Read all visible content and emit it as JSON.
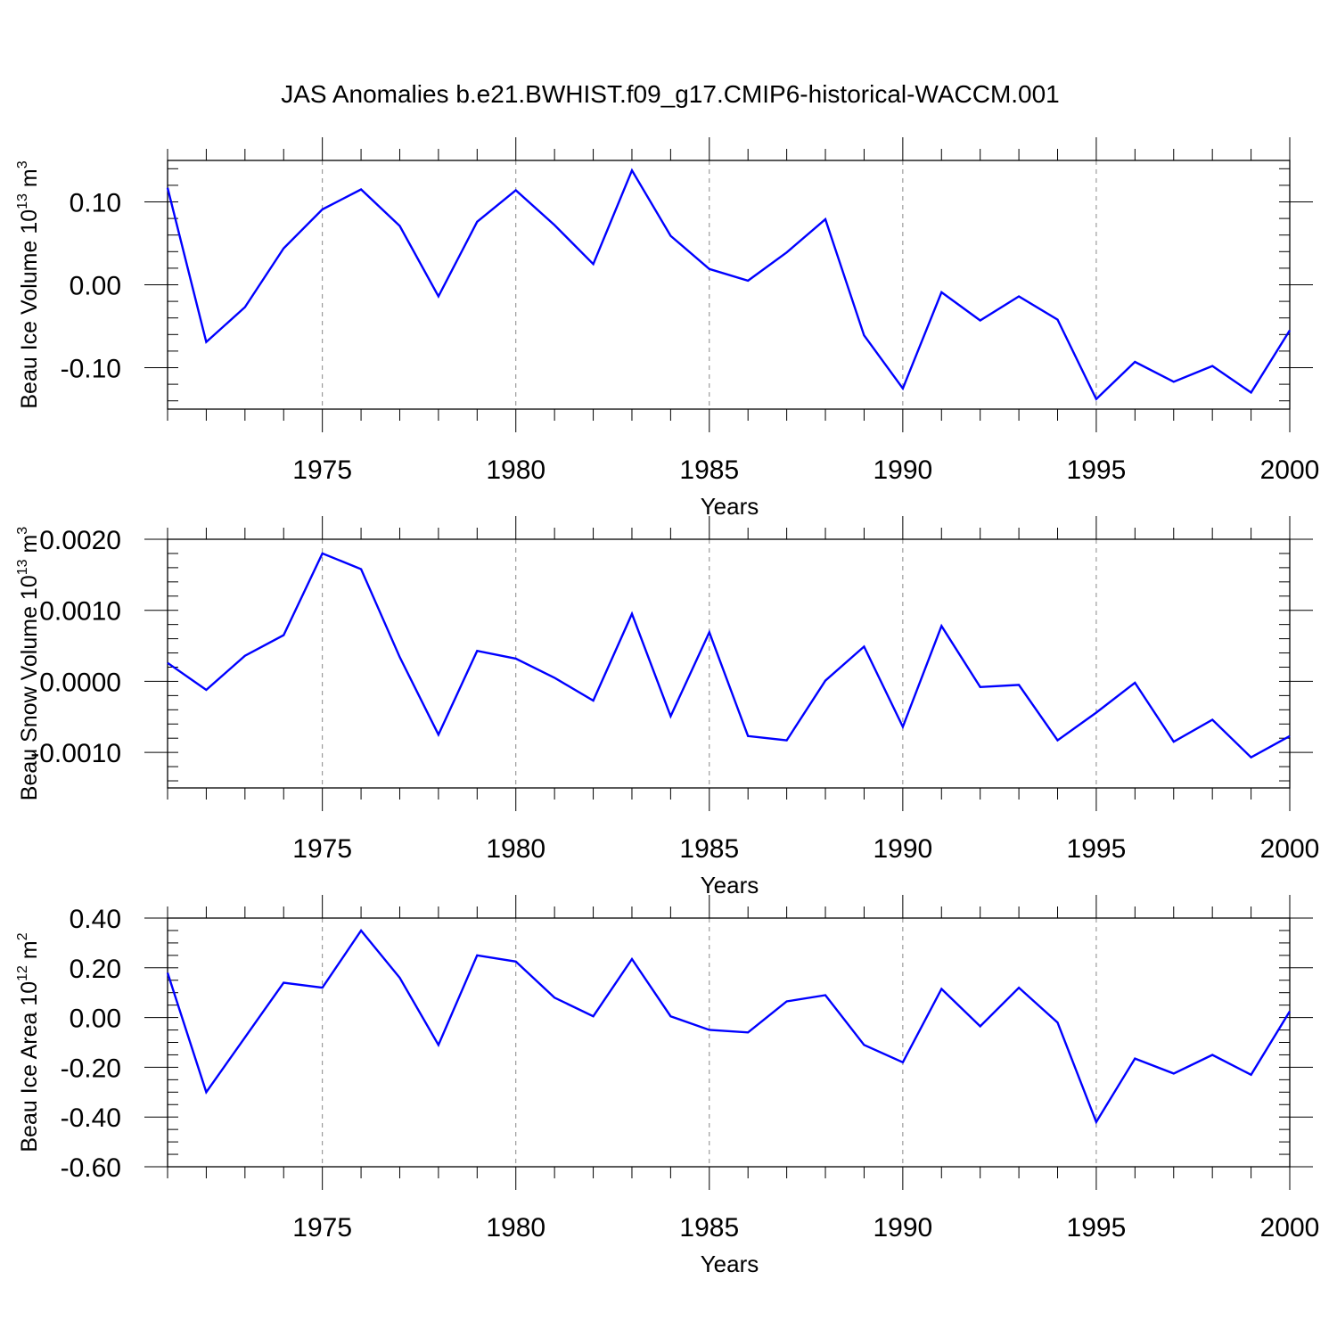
{
  "figure_title": "JAS Anomalies b.e21.BWHIST.f09_g17.CMIP6-historical-WACCM.001",
  "colors": {
    "series": "#0000ff",
    "axis": "#000000",
    "grid": "#888888"
  },
  "chart_data": [
    {
      "type": "line",
      "ylabel_main": "Beau Ice Volume 10",
      "ylabel_sup": "13",
      "ylabel_unit": "m",
      "ylabel_unit_sup": "3",
      "xlabel": "Years",
      "xlim": [
        1971,
        2000
      ],
      "ylim": [
        -0.15,
        0.15
      ],
      "yticks": [
        -0.1,
        0.0,
        0.1
      ],
      "ytick_labels": [
        "-0.10",
        "0.00",
        "0.10"
      ],
      "yminor_step": 0.02,
      "xticks": [
        1975,
        1980,
        1985,
        1990,
        1995,
        2000
      ],
      "xtick_labels": [
        "1975",
        "1980",
        "1985",
        "1990",
        "1995",
        "2000"
      ],
      "x": [
        1971,
        1972,
        1973,
        1974,
        1975,
        1976,
        1977,
        1978,
        1979,
        1980,
        1981,
        1982,
        1983,
        1984,
        1985,
        1986,
        1987,
        1988,
        1989,
        1990,
        1991,
        1992,
        1993,
        1994,
        1995,
        1996,
        1997,
        1998,
        1999,
        2000
      ],
      "series": [
        {
          "name": "Beau Ice Volume",
          "values": [
            0.117,
            -0.069,
            -0.027,
            0.044,
            0.091,
            0.115,
            0.071,
            -0.014,
            0.076,
            0.114,
            0.072,
            0.025,
            0.138,
            0.059,
            0.019,
            0.005,
            0.039,
            0.079,
            -0.061,
            -0.125,
            -0.009,
            -0.043,
            -0.014,
            -0.042,
            -0.138,
            -0.093,
            -0.117,
            -0.098,
            -0.13,
            -0.055
          ]
        }
      ]
    },
    {
      "type": "line",
      "ylabel_main": "Beau Snow Volume 10",
      "ylabel_sup": "13",
      "ylabel_unit": "m",
      "ylabel_unit_sup": "3",
      "xlabel": "Years",
      "xlim": [
        1971,
        2000
      ],
      "ylim": [
        -0.0015,
        0.002
      ],
      "yticks": [
        -0.001,
        0.0,
        0.001,
        0.002
      ],
      "ytick_labels": [
        "-0.0010",
        "0.0000",
        "0.0010",
        "0.0020"
      ],
      "yminor_step": 0.0002,
      "xticks": [
        1975,
        1980,
        1985,
        1990,
        1995,
        2000
      ],
      "xtick_labels": [
        "1975",
        "1980",
        "1985",
        "1990",
        "1995",
        "2000"
      ],
      "x": [
        1971,
        1972,
        1973,
        1974,
        1975,
        1976,
        1977,
        1978,
        1979,
        1980,
        1981,
        1982,
        1983,
        1984,
        1985,
        1986,
        1987,
        1988,
        1989,
        1990,
        1991,
        1992,
        1993,
        1994,
        1995,
        1996,
        1997,
        1998,
        1999,
        2000
      ],
      "series": [
        {
          "name": "Beau Snow Volume",
          "values": [
            0.00026,
            -0.00012,
            0.00036,
            0.00065,
            0.0018,
            0.00158,
            0.00034,
            -0.00075,
            0.00043,
            0.00032,
            5e-05,
            -0.00027,
            0.00095,
            -0.00049,
            0.00069,
            -0.00077,
            -0.00083,
            1e-05,
            0.00049,
            -0.00064,
            0.00078,
            -8e-05,
            -5e-05,
            -0.00083,
            -0.00044,
            -2e-05,
            -0.00085,
            -0.00054,
            -0.00107,
            -0.00077
          ]
        }
      ]
    },
    {
      "type": "line",
      "ylabel_main": "Beau Ice Area 10",
      "ylabel_sup": "12",
      "ylabel_unit": "m",
      "ylabel_unit_sup": "2",
      "xlabel": "Years",
      "xlim": [
        1971,
        2000
      ],
      "ylim": [
        -0.6,
        0.4
      ],
      "yticks": [
        -0.6,
        -0.4,
        -0.2,
        0.0,
        0.2,
        0.4
      ],
      "ytick_labels": [
        "-0.60",
        "-0.40",
        "-0.20",
        "0.00",
        "0.20",
        "0.40"
      ],
      "yminor_step": 0.05,
      "xticks": [
        1975,
        1980,
        1985,
        1990,
        1995,
        2000
      ],
      "xtick_labels": [
        "1975",
        "1980",
        "1985",
        "1990",
        "1995",
        "2000"
      ],
      "x": [
        1971,
        1972,
        1973,
        1974,
        1975,
        1976,
        1977,
        1978,
        1979,
        1980,
        1981,
        1982,
        1983,
        1984,
        1985,
        1986,
        1987,
        1988,
        1989,
        1990,
        1991,
        1992,
        1993,
        1994,
        1995,
        1996,
        1997,
        1998,
        1999,
        2000
      ],
      "series": [
        {
          "name": "Beau Ice Area",
          "values": [
            0.18,
            -0.3,
            -0.08,
            0.14,
            0.12,
            0.35,
            0.16,
            -0.11,
            0.25,
            0.225,
            0.08,
            0.005,
            0.235,
            0.005,
            -0.05,
            -0.06,
            0.065,
            0.09,
            -0.11,
            -0.18,
            0.115,
            -0.035,
            0.12,
            -0.02,
            -0.42,
            -0.165,
            -0.225,
            -0.15,
            -0.23,
            0.025
          ]
        }
      ]
    }
  ]
}
